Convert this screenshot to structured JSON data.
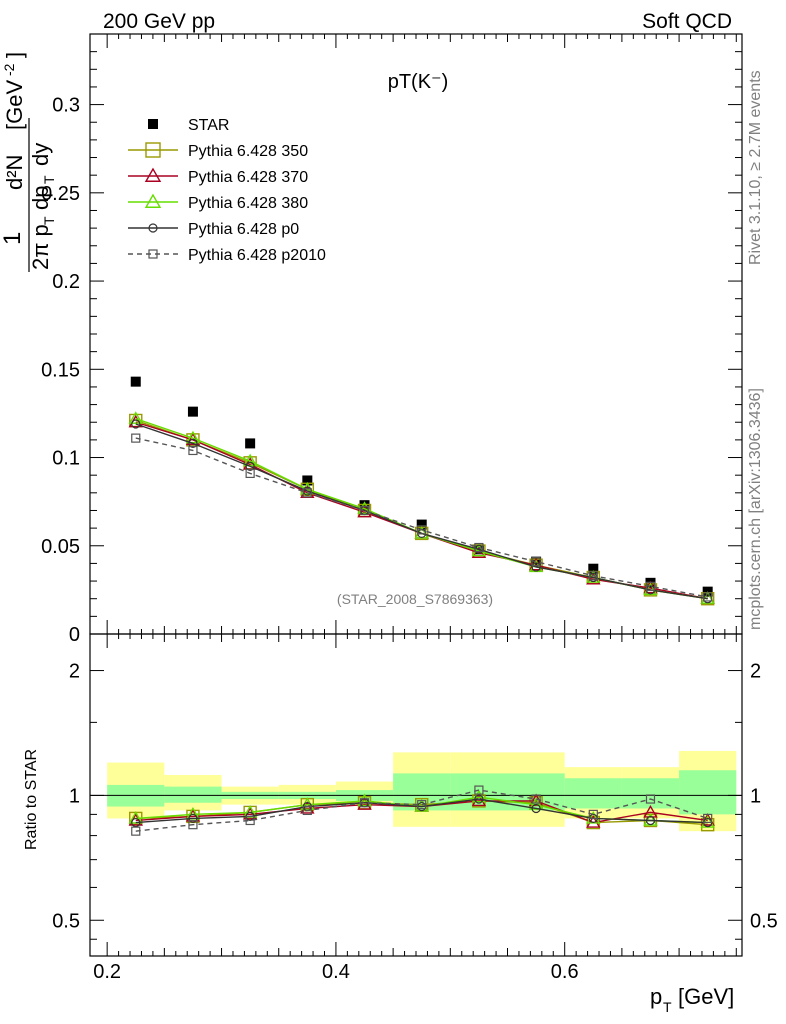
{
  "header": {
    "left": "200 GeV pp",
    "right": "Soft QCD"
  },
  "side_labels": {
    "rivet": "Rivet 3.1.10, ≥ 2.7M events",
    "mcplots": "mcplots.cern.ch [arXiv:1306.3436]"
  },
  "chart_data": {
    "type": "scatter",
    "title": "pT(K⁻)",
    "watermark": "(STAR_2008_S7869363)",
    "x": [
      0.225,
      0.275,
      0.325,
      0.375,
      0.425,
      0.475,
      0.525,
      0.575,
      0.625,
      0.675,
      0.725
    ],
    "xlim": [
      0.185,
      0.755
    ],
    "xlabel": "p_T [GeV]",
    "xticks": [
      "0.2",
      "0.4",
      "0.6"
    ],
    "main_panel": {
      "ylabel": "1/(2π p_T) d²N/(dp_T dy) [GeV⁻²]",
      "ylim": [
        0,
        0.34
      ],
      "yticks": [
        "0",
        "0.05",
        "0.1",
        "0.15",
        "0.2",
        "0.25",
        "0.3"
      ],
      "series": [
        {
          "name": "STAR",
          "marker": "filled-square",
          "line": "none",
          "color": "#000000",
          "values": [
            0.143,
            0.126,
            0.108,
            0.087,
            0.073,
            0.062,
            0.048,
            0.041,
            0.037,
            0.029,
            0.024
          ]
        },
        {
          "name": "Pythia 6.428 350",
          "marker": "open-square",
          "line": "solid",
          "color": "#999900",
          "values": [
            0.121,
            0.11,
            0.097,
            0.082,
            0.07,
            0.057,
            0.047,
            0.039,
            0.032,
            0.025,
            0.02
          ]
        },
        {
          "name": "Pythia 6.428 370",
          "marker": "open-triangle",
          "line": "solid",
          "color": "#aa0022",
          "values": [
            0.12,
            0.11,
            0.096,
            0.08,
            0.069,
            0.057,
            0.046,
            0.039,
            0.031,
            0.026,
            0.02
          ]
        },
        {
          "name": "Pythia 6.428 380",
          "marker": "open-triangle",
          "line": "solid",
          "color": "#66dd00",
          "values": [
            0.122,
            0.111,
            0.098,
            0.082,
            0.071,
            0.057,
            0.047,
            0.038,
            0.032,
            0.025,
            0.02
          ]
        },
        {
          "name": "Pythia 6.428 p0",
          "marker": "open-circle",
          "line": "solid",
          "color": "#333333",
          "values": [
            0.119,
            0.108,
            0.095,
            0.081,
            0.07,
            0.057,
            0.048,
            0.038,
            0.032,
            0.025,
            0.02
          ]
        },
        {
          "name": "Pythia 6.428 p2010",
          "marker": "open-square-small",
          "line": "dashed",
          "color": "#555555",
          "values": [
            0.111,
            0.104,
            0.091,
            0.08,
            0.07,
            0.059,
            0.049,
            0.041,
            0.033,
            0.027,
            0.021
          ]
        }
      ]
    },
    "ratio_panel": {
      "ylabel": "Ratio to STAR",
      "yticks": [
        "0.5",
        "1",
        "2"
      ],
      "scale": "log",
      "ylim": [
        0.41,
        2.45
      ],
      "band_bins": [
        0.2,
        0.25,
        0.3,
        0.35,
        0.4,
        0.45,
        0.5,
        0.55,
        0.6,
        0.65,
        0.7,
        0.75
      ],
      "band_total": [
        [
          0.88,
          1.2
        ],
        [
          0.92,
          1.12
        ],
        [
          0.95,
          1.05
        ],
        [
          0.95,
          1.06
        ],
        [
          0.95,
          1.08
        ],
        [
          0.84,
          1.27
        ],
        [
          0.84,
          1.27
        ],
        [
          0.84,
          1.27
        ],
        [
          0.88,
          1.17
        ],
        [
          0.88,
          1.17
        ],
        [
          0.82,
          1.28
        ]
      ],
      "band_stat": [
        [
          0.94,
          1.06
        ],
        [
          0.96,
          1.05
        ],
        [
          0.98,
          1.02
        ],
        [
          0.98,
          1.02
        ],
        [
          0.97,
          1.03
        ],
        [
          0.92,
          1.13
        ],
        [
          0.92,
          1.13
        ],
        [
          0.92,
          1.13
        ],
        [
          0.93,
          1.1
        ],
        [
          0.93,
          1.1
        ],
        [
          0.9,
          1.15
        ]
      ],
      "series": [
        {
          "name": "Pythia 6.428 350",
          "values": [
            0.88,
            0.89,
            0.91,
            0.95,
            0.96,
            0.95,
            0.97,
            0.96,
            0.86,
            0.87,
            0.85
          ]
        },
        {
          "name": "Pythia 6.428 370",
          "values": [
            0.87,
            0.89,
            0.9,
            0.93,
            0.95,
            0.94,
            0.97,
            0.97,
            0.86,
            0.91,
            0.87
          ]
        },
        {
          "name": "Pythia 6.428 380",
          "values": [
            0.88,
            0.9,
            0.91,
            0.95,
            0.97,
            0.94,
            0.99,
            0.95,
            0.88,
            0.87,
            0.86
          ]
        },
        {
          "name": "Pythia 6.428 p0",
          "values": [
            0.86,
            0.88,
            0.89,
            0.94,
            0.96,
            0.94,
            0.98,
            0.93,
            0.88,
            0.87,
            0.86
          ]
        },
        {
          "name": "Pythia 6.428 p2010",
          "values": [
            0.82,
            0.85,
            0.87,
            0.92,
            0.96,
            0.95,
            1.03,
            0.98,
            0.9,
            0.98,
            0.88
          ]
        }
      ]
    }
  }
}
